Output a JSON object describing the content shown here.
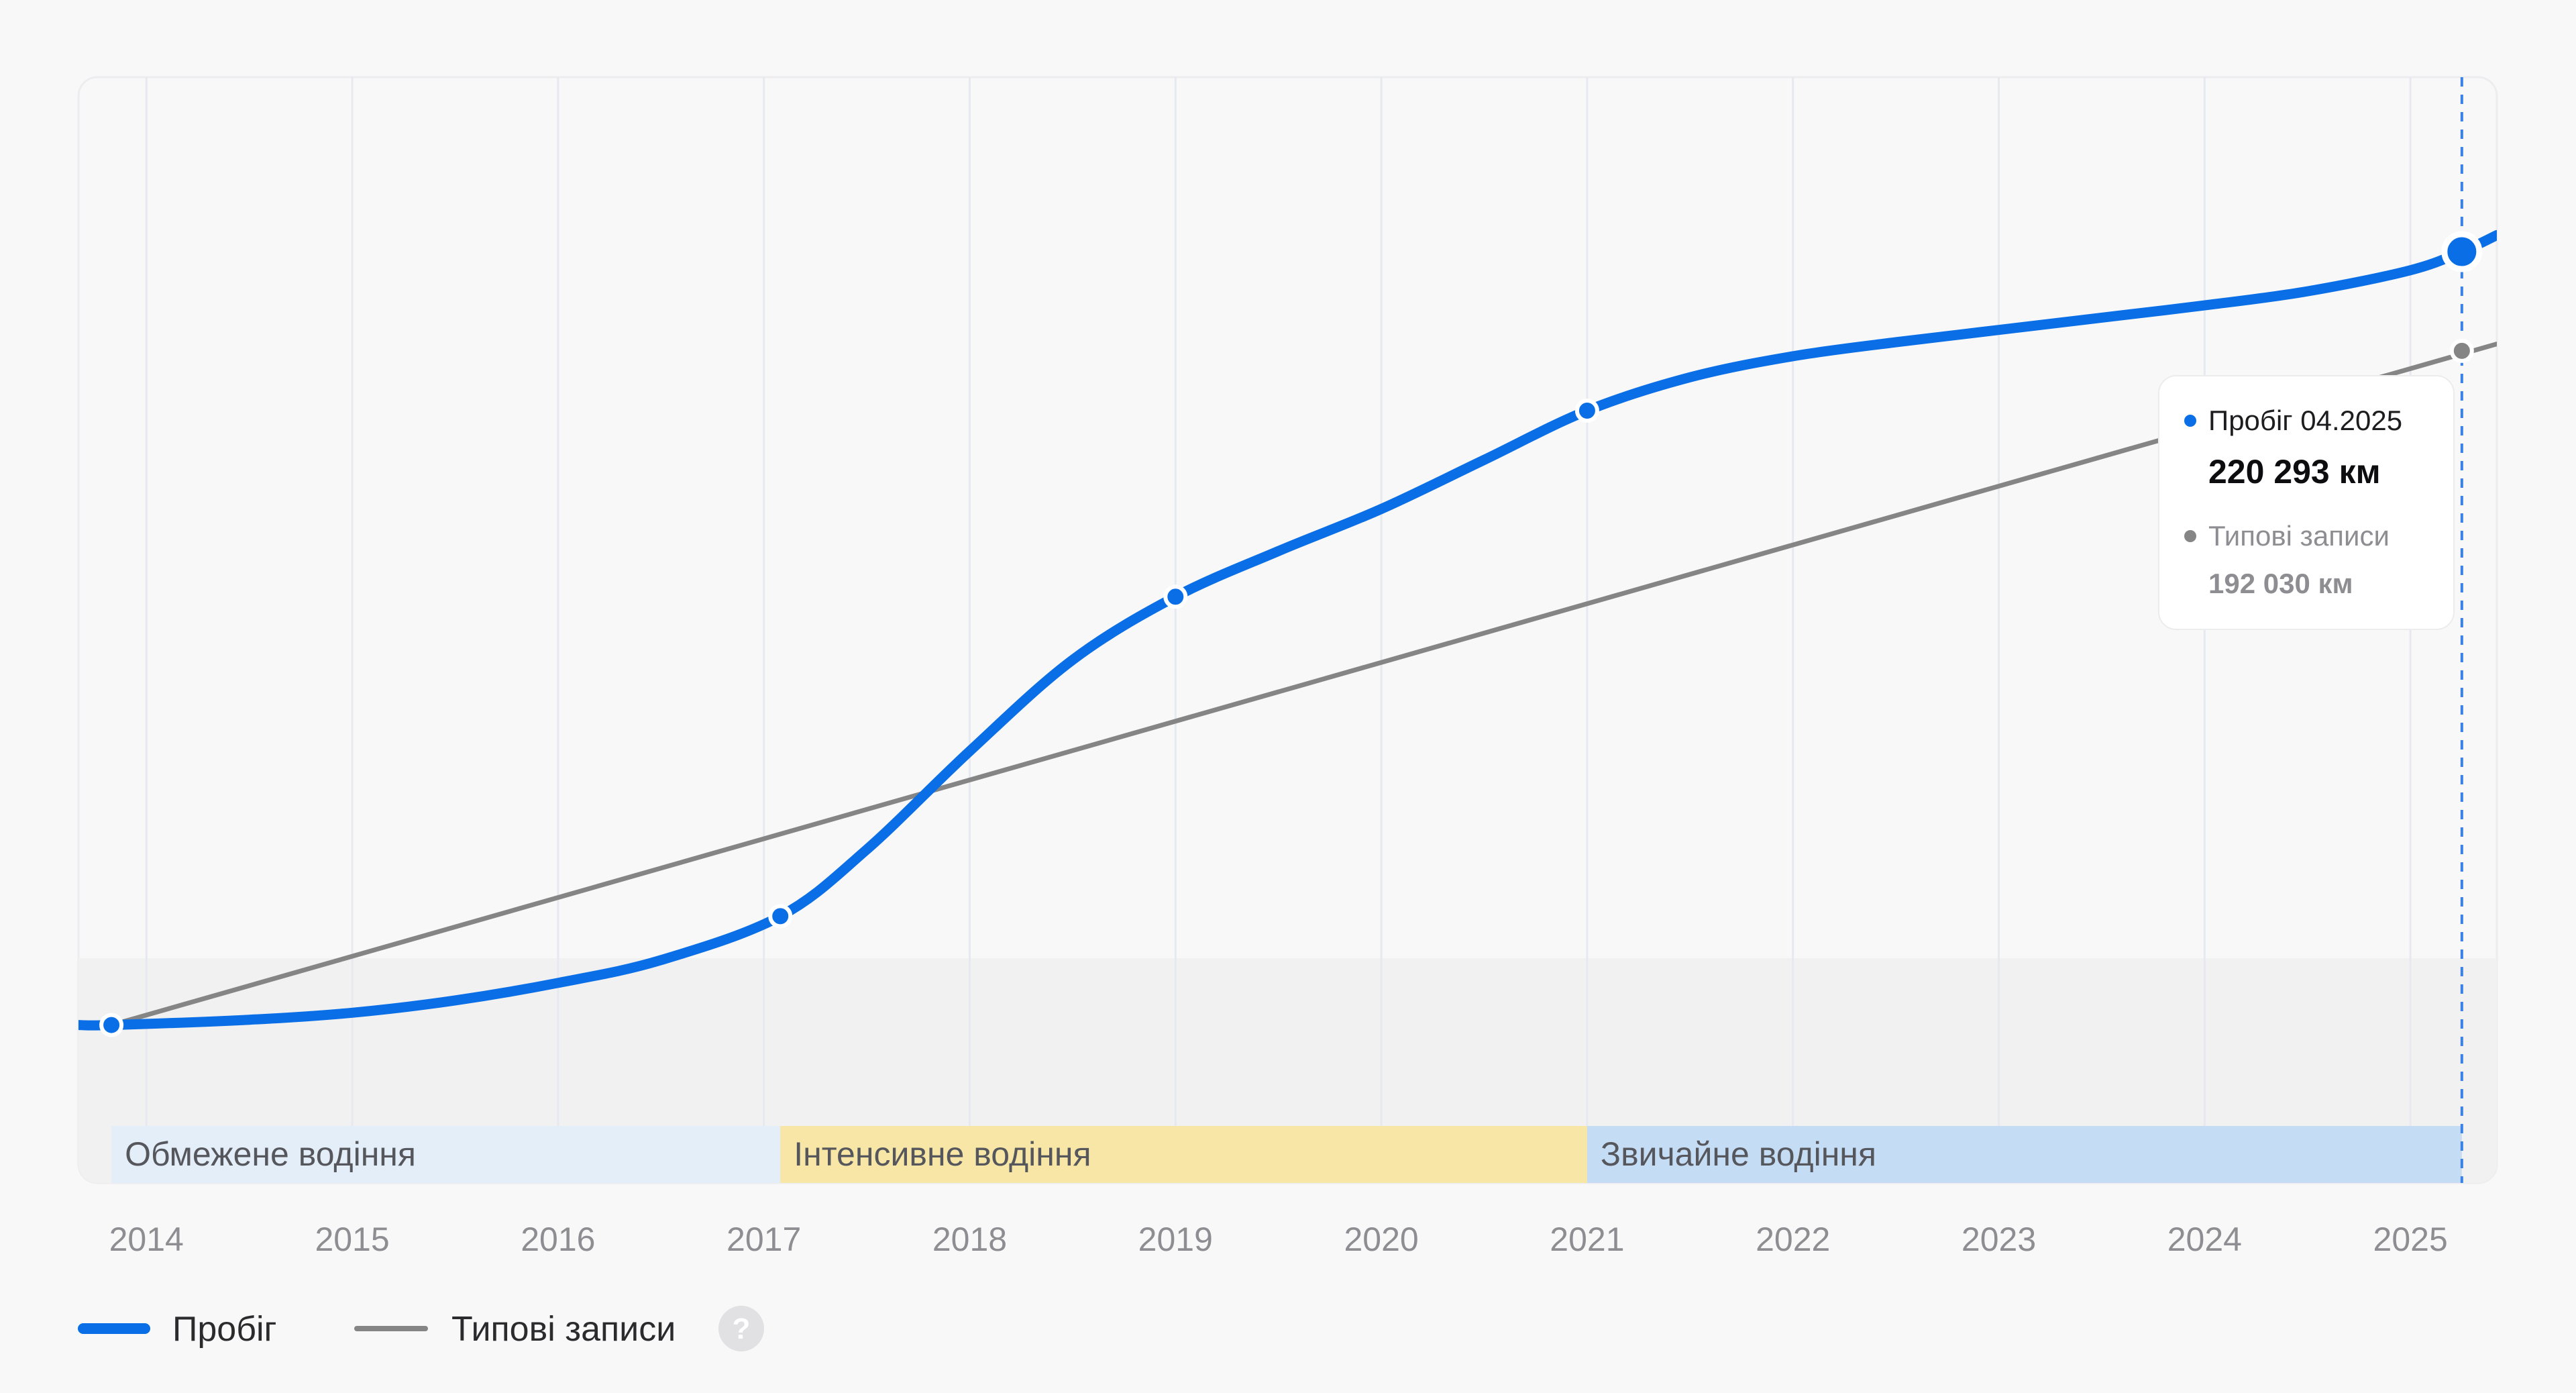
{
  "chart_data": {
    "type": "line",
    "x_range": [
      2013.67,
      2025.42
    ],
    "y_range": [
      -45000,
      270000
    ],
    "x_ticks": [
      "2014",
      "2015",
      "2016",
      "2017",
      "2018",
      "2019",
      "2020",
      "2021",
      "2022",
      "2023",
      "2024",
      "2025"
    ],
    "series": [
      {
        "name": "Пробіг",
        "color": "#0a6fe6",
        "points": [
          {
            "x": 2013.83,
            "y": 0
          },
          {
            "x": 2017.08,
            "y": 31000
          },
          {
            "x": 2019.0,
            "y": 122000
          },
          {
            "x": 2021.0,
            "y": 175000
          },
          {
            "x": 2025.25,
            "y": 220293
          }
        ],
        "curve": [
          [
            2013.67,
            0
          ],
          [
            2013.83,
            0
          ],
          [
            2014.5,
            1500
          ],
          [
            2015.0,
            3500
          ],
          [
            2015.5,
            7000
          ],
          [
            2016.0,
            12000
          ],
          [
            2016.5,
            18500
          ],
          [
            2017.08,
            31000
          ],
          [
            2017.5,
            50000
          ],
          [
            2018.0,
            78000
          ],
          [
            2018.5,
            104000
          ],
          [
            2019.0,
            122000
          ],
          [
            2019.5,
            135000
          ],
          [
            2020.0,
            147000
          ],
          [
            2020.5,
            161000
          ],
          [
            2021.0,
            175000
          ],
          [
            2021.5,
            184500
          ],
          [
            2022.0,
            190500
          ],
          [
            2022.5,
            194500
          ],
          [
            2023.0,
            198000
          ],
          [
            2023.5,
            201500
          ],
          [
            2024.0,
            205000
          ],
          [
            2024.5,
            209000
          ],
          [
            2025.0,
            215000
          ],
          [
            2025.25,
            220293
          ],
          [
            2025.42,
            225000
          ]
        ]
      },
      {
        "name": "Типові записи",
        "color": "#858585",
        "points": [
          {
            "x": 2013.83,
            "y": 0
          },
          {
            "x": 2025.25,
            "y": 192030
          }
        ],
        "curve": [
          [
            2013.83,
            0
          ],
          [
            2025.42,
            194000
          ]
        ]
      }
    ],
    "bands": [
      {
        "label": "Обмежене водіння",
        "x_start": 2013.83,
        "x_end": 2017.08,
        "color": "#e3eef9"
      },
      {
        "label": "Інтенсивне водіння",
        "x_start": 2017.08,
        "x_end": 2021.0,
        "color": "#f7e6a6"
      },
      {
        "label": "Звичайне водіння",
        "x_start": 2021.0,
        "x_end": 2025.25,
        "color": "#c5dcf5"
      }
    ],
    "cursor_x": 2025.25,
    "tooltip": {
      "series1_label": "Пробіг 04.2025",
      "series1_value": "220 293 км",
      "series2_label": "Типові записи",
      "series2_value": "192 030 км"
    },
    "legend": [
      "Пробіг",
      "Типові записи"
    ],
    "help_symbol": "?"
  }
}
